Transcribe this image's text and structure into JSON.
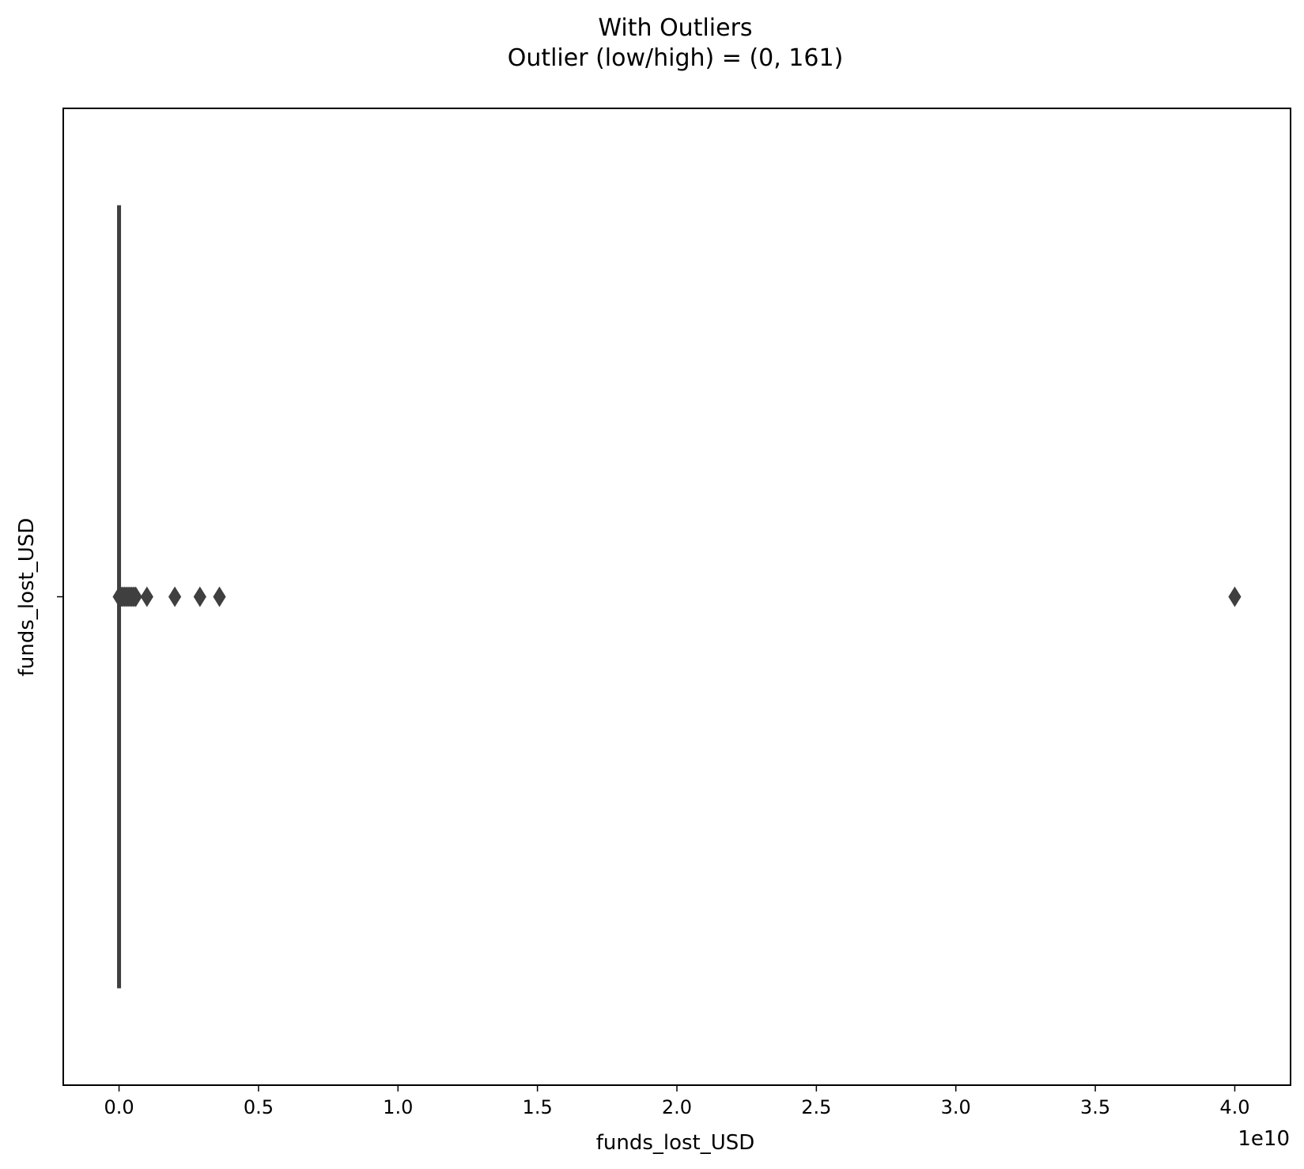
{
  "chart_data": {
    "type": "box",
    "orientation": "horizontal",
    "title_lines": [
      "With Outliers",
      "Outlier (low/high) = (0, 161)"
    ],
    "xlabel": "funds_lost_USD",
    "ylabel": "funds_lost_USD",
    "x_offset_label": "1e10",
    "x_scale": 10000000000.0,
    "xlim": [
      -0.2,
      4.2
    ],
    "xticks": [
      0.0,
      0.5,
      1.0,
      1.5,
      2.0,
      2.5,
      3.0,
      3.5,
      4.0
    ],
    "xtick_labels": [
      "0.0",
      "0.5",
      "1.0",
      "1.5",
      "2.0",
      "2.5",
      "3.0",
      "3.5",
      "4.0"
    ],
    "ytick_labels": [
      ""
    ],
    "box": {
      "min": 0.0,
      "q1": 0.0,
      "median": 0.0,
      "q3": 0.0,
      "max": 0.0
    },
    "outliers": [
      0.0,
      0.003,
      0.006,
      0.01,
      0.015,
      0.02,
      0.025,
      0.03,
      0.035,
      0.04,
      0.045,
      0.05,
      0.055,
      0.06,
      0.1,
      0.2,
      0.29,
      0.36,
      4.0
    ],
    "grid": false,
    "colors": {
      "box": "#3f3f3f",
      "axes": "#000000",
      "background": "#ffffff"
    }
  }
}
